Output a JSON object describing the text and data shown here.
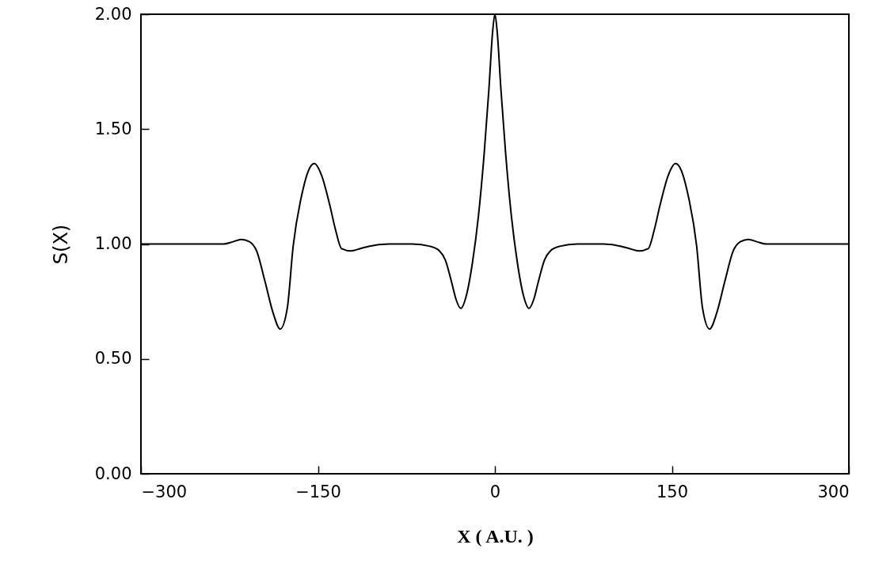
{
  "chart_data": {
    "type": "line",
    "xlabel": "X ( A.U. )",
    "ylabel": "S(X)",
    "xlim": [
      -300,
      300
    ],
    "ylim": [
      0,
      2
    ],
    "xticks": [
      {
        "value": -300,
        "label": "−300"
      },
      {
        "value": -150,
        "label": "−150"
      },
      0,
      150,
      300
    ],
    "yticks": [
      {
        "value": 0,
        "label": "0.00"
      },
      {
        "value": 0.5,
        "label": "0.50"
      },
      {
        "value": 1,
        "label": "1.00"
      },
      {
        "value": 1.5,
        "label": "1.50"
      },
      {
        "value": 2,
        "label": "2.00"
      }
    ],
    "grid": false,
    "line_style": "solid",
    "marker": "none",
    "series": [
      {
        "color": "#000000",
        "x": [
          -300,
          -260,
          -230,
          -222,
          -215,
          -208,
          -202,
          -195,
          -188,
          -182,
          -176,
          -171,
          -163,
          -158,
          -153,
          -147,
          -140,
          -135,
          -130,
          -122,
          -114,
          -107,
          -90,
          -70,
          -55,
          -47,
          -42,
          -37,
          -33,
          -29,
          -24,
          -19,
          -14,
          -9,
          -5,
          -2,
          0,
          2,
          5,
          9,
          14,
          19,
          24,
          29,
          33,
          37,
          42,
          47,
          55,
          70,
          90,
          107,
          114,
          122,
          130,
          135,
          140,
          147,
          153,
          158,
          163,
          171,
          176,
          182,
          188,
          195,
          202,
          208,
          215,
          222,
          230,
          260,
          300
        ],
        "values": [
          1.0,
          1.0,
          1.0,
          1.01,
          1.02,
          1.01,
          0.97,
          0.84,
          0.7,
          0.63,
          0.72,
          0.99,
          1.23,
          1.32,
          1.35,
          1.3,
          1.17,
          1.06,
          0.98,
          0.97,
          0.98,
          0.99,
          1.0,
          1.0,
          0.99,
          0.97,
          0.93,
          0.84,
          0.76,
          0.72,
          0.78,
          0.92,
          1.12,
          1.4,
          1.68,
          1.92,
          2.0,
          1.92,
          1.68,
          1.4,
          1.12,
          0.92,
          0.78,
          0.72,
          0.76,
          0.84,
          0.93,
          0.97,
          0.99,
          1.0,
          1.0,
          0.99,
          0.98,
          0.97,
          0.98,
          1.06,
          1.17,
          1.3,
          1.35,
          1.32,
          1.23,
          0.99,
          0.72,
          0.63,
          0.7,
          0.84,
          0.97,
          1.01,
          1.02,
          1.01,
          1.0,
          1.0,
          1.0
        ]
      }
    ]
  }
}
